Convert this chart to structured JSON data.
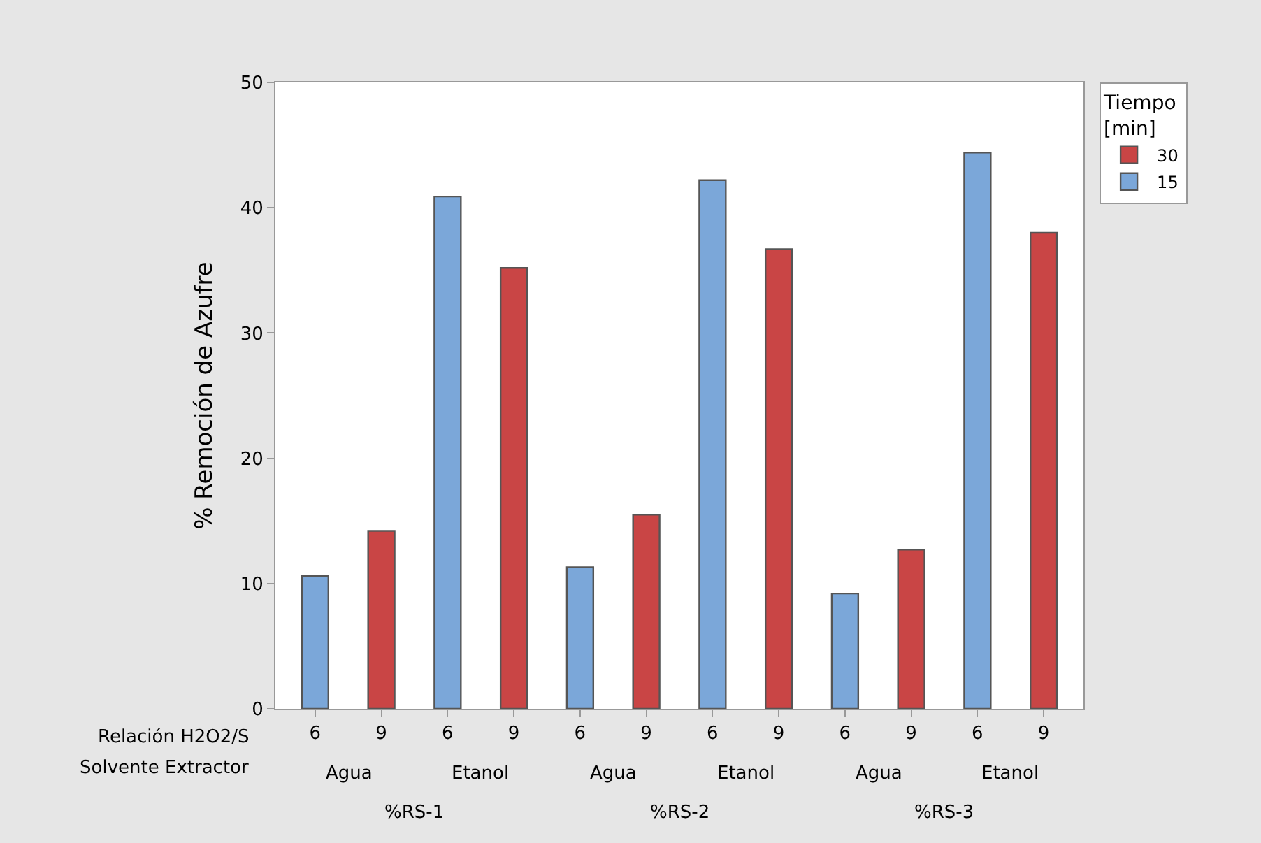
{
  "chart_data": {
    "type": "bar",
    "ylabel": "% Remoción de Azufre",
    "legend_title": "Tiempo [min]",
    "categories": [
      "6",
      "9",
      "6",
      "9",
      "6",
      "9",
      "6",
      "9",
      "6",
      "9",
      "6",
      "9"
    ],
    "series": [
      {
        "name": "30",
        "color": "#c94545",
        "values": [
          null,
          14.2,
          null,
          35.2,
          null,
          15.5,
          null,
          36.7,
          null,
          12.7,
          null,
          38.0
        ]
      },
      {
        "name": "15",
        "color": "#7ba7d9",
        "values": [
          10.6,
          null,
          40.9,
          null,
          11.3,
          null,
          42.2,
          null,
          9.2,
          null,
          44.4,
          null
        ]
      }
    ],
    "ylim": [
      0,
      50
    ],
    "yticks": [
      0,
      10,
      20,
      30,
      40,
      50
    ],
    "grid": false,
    "legend": "top right",
    "annotations": [
      "Relación H2O2/S",
      "Solvente Extractor",
      "Agua",
      "Etanol",
      "Agua",
      "Etanol",
      "Agua",
      "Etanol",
      "%RS-1",
      "%RS-2",
      "%RS-3"
    ]
  }
}
